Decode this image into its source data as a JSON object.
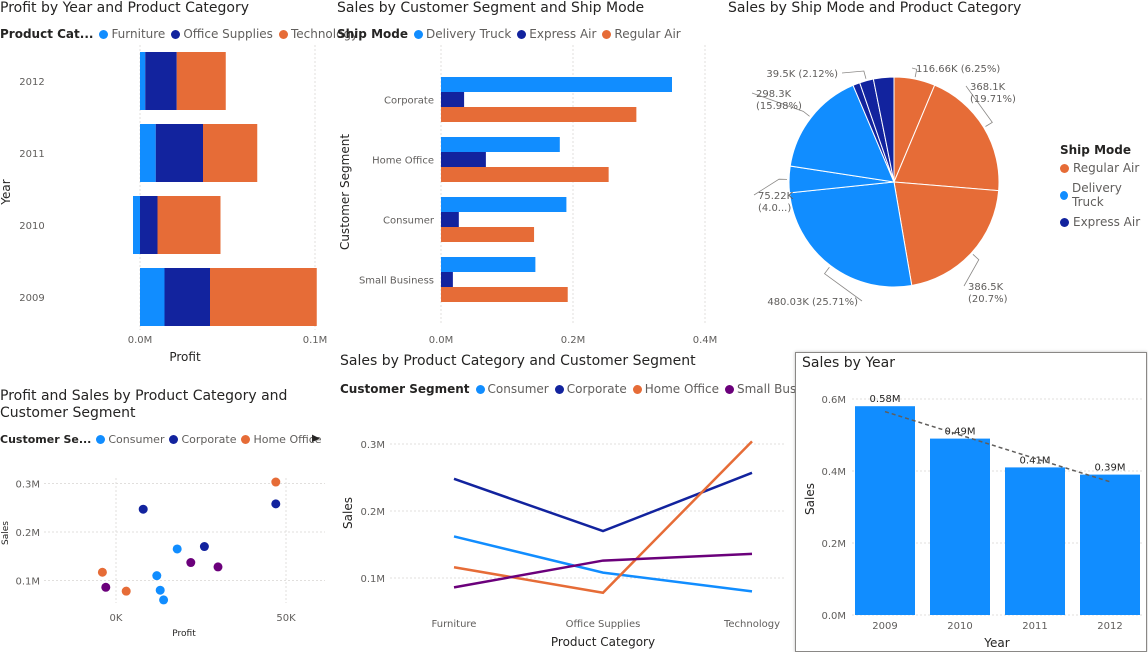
{
  "colors": {
    "blue": "#118DFF",
    "navy": "#12239E",
    "orange": "#E66C37",
    "purple": "#6B007B",
    "grid": "#e1dfdd"
  },
  "v1": {
    "title": "Profit by Year and Product Category",
    "legend_title": "Product Cat...",
    "legend": [
      "Furniture",
      "Office Supplies",
      "Technology"
    ],
    "xlabel": "Profit",
    "ylabel": "Year",
    "x_ticks": [
      "0.0M",
      "0.1M"
    ]
  },
  "v2": {
    "title": "Sales by Customer Segment and Ship Mode",
    "legend_title": "Ship Mode",
    "legend": [
      "Delivery Truck",
      "Express Air",
      "Regular Air"
    ],
    "ylabel": "Customer Segment",
    "x_ticks": [
      "0.0M",
      "0.2M",
      "0.4M"
    ]
  },
  "v3": {
    "title": "Sales by Ship Mode and Product Category",
    "legend_title": "Ship Mode",
    "legend": [
      "Regular Air",
      "Delivery Truck",
      "Express Air"
    ],
    "labels": [
      "116.66K (6.25%)",
      "368.1K (19.71%)",
      "386.5K (20.7%)",
      "480.03K (25.71%)",
      "75.22K (4.0...)",
      "298.3K (15.98%)",
      "39.5K (2.12%)"
    ]
  },
  "v4": {
    "title_line1": "Profit and Sales by Product Category and",
    "title_line2": "Customer Segment",
    "legend_title": "Customer Se...",
    "legend": [
      "Consumer",
      "Corporate",
      "Home Office"
    ],
    "more_icon": "▶",
    "xlabel": "Profit",
    "ylabel": "Sales",
    "x_ticks": [
      "0K",
      "50K"
    ],
    "y_ticks": [
      "0.1M",
      "0.2M",
      "0.3M"
    ]
  },
  "v5": {
    "title": "Sales by Product Category and Customer Segment",
    "legend_title": "Customer Segment",
    "legend": [
      "Consumer",
      "Corporate",
      "Home Office",
      "Small Business"
    ],
    "xlabel": "Product Category",
    "ylabel": "Sales",
    "y_ticks": [
      "0.1M",
      "0.2M",
      "0.3M"
    ]
  },
  "v6": {
    "title": "Sales by Year",
    "xlabel": "Year",
    "ylabel": "Sales",
    "y_ticks": [
      "0.0M",
      "0.2M",
      "0.4M",
      "0.6M"
    ],
    "data_labels": [
      "0.58M",
      "0.49M",
      "0.41M",
      "0.39M"
    ]
  },
  "chart_data": [
    {
      "type": "bar",
      "orientation": "horizontal",
      "stacked": true,
      "title": "Profit by Year and Product Category",
      "categories": [
        "2012",
        "2011",
        "2010",
        "2009"
      ],
      "series": [
        {
          "name": "Furniture",
          "values": [
            0.003,
            0.009,
            -0.004,
            0.014
          ]
        },
        {
          "name": "Office Supplies",
          "values": [
            0.018,
            0.027,
            0.01,
            0.026
          ]
        },
        {
          "name": "Technology",
          "values": [
            0.028,
            0.031,
            0.036,
            0.061
          ]
        }
      ],
      "xlabel": "Profit",
      "ylabel": "Year",
      "xlim": [
        -0.002,
        0.12
      ],
      "x_ticks": [
        0.0,
        0.1
      ]
    },
    {
      "type": "bar",
      "orientation": "horizontal",
      "title": "Sales by Customer Segment and Ship Mode",
      "categories": [
        "Corporate",
        "Home Office",
        "Consumer",
        "Small Business"
      ],
      "series": [
        {
          "name": "Delivery Truck",
          "values": [
            0.35,
            0.18,
            0.19,
            0.143
          ]
        },
        {
          "name": "Express Air",
          "values": [
            0.035,
            0.068,
            0.027,
            0.018
          ]
        },
        {
          "name": "Regular Air",
          "values": [
            0.296,
            0.254,
            0.141,
            0.192
          ]
        }
      ],
      "ylabel": "Customer Segment",
      "xlim": [
        0,
        0.4
      ]
    },
    {
      "type": "pie",
      "title": "Sales by Ship Mode and Product Category",
      "slices": [
        {
          "label": "116.66K (6.25%)",
          "value": 116.66,
          "series": "Regular Air"
        },
        {
          "label": "368.1K (19.71%)",
          "value": 368.1,
          "series": "Regular Air"
        },
        {
          "label": "386.5K (20.7%)",
          "value": 386.5,
          "series": "Regular Air"
        },
        {
          "label": "480.03K (25.71%)",
          "value": 480.03,
          "series": "Delivery Truck"
        },
        {
          "label": "75.22K (4.0...)",
          "value": 75.22,
          "series": "Delivery Truck"
        },
        {
          "label": "298.3K (15.98%)",
          "value": 298.3,
          "series": "Delivery Truck"
        },
        {
          "label": "",
          "value": 20.0,
          "series": "Express Air"
        },
        {
          "label": "39.5K (2.12%)",
          "value": 39.5,
          "series": "Express Air"
        },
        {
          "label": "",
          "value": 58.0,
          "series": "Express Air"
        }
      ]
    },
    {
      "type": "scatter",
      "title": "Profit and Sales by Product Category and Customer Segment",
      "series": [
        {
          "name": "Consumer",
          "points": [
            [
              14,
              60
            ],
            [
              18,
              165
            ],
            [
              12,
              110
            ],
            [
              13,
              80
            ]
          ]
        },
        {
          "name": "Corporate",
          "points": [
            [
              8,
              247
            ],
            [
              26,
              170
            ],
            [
              47,
              258
            ]
          ]
        },
        {
          "name": "Home Office",
          "points": [
            [
              -4,
              117
            ],
            [
              3,
              78
            ],
            [
              47,
              303
            ]
          ]
        },
        {
          "name": "",
          "points": [
            [
              -3,
              86
            ],
            [
              22,
              137
            ],
            [
              30,
              128
            ]
          ]
        }
      ],
      "xlabel": "Profit",
      "ylabel": "Sales",
      "xlim": [
        -10,
        55
      ],
      "ylim": [
        0,
        340
      ]
    },
    {
      "type": "line",
      "title": "Sales by Product Category and Customer Segment",
      "categories": [
        "Furniture",
        "Office Supplies",
        "Technology"
      ],
      "series": [
        {
          "name": "Consumer",
          "values": [
            0.162,
            0.108,
            0.08
          ]
        },
        {
          "name": "Corporate",
          "values": [
            0.248,
            0.17,
            0.257
          ]
        },
        {
          "name": "Home Office",
          "values": [
            0.116,
            0.078,
            0.304
          ]
        },
        {
          "name": "Small Business",
          "values": [
            0.086,
            0.126,
            0.136
          ]
        }
      ],
      "xlabel": "Product Category",
      "ylabel": "Sales",
      "ylim": [
        0.05,
        0.32
      ]
    },
    {
      "type": "bar",
      "title": "Sales by Year",
      "categories": [
        "2009",
        "2010",
        "2011",
        "2012"
      ],
      "values": [
        0.58,
        0.49,
        0.41,
        0.39
      ],
      "data_labels": [
        "0.58M",
        "0.49M",
        "0.41M",
        "0.39M"
      ],
      "trend_line": true,
      "xlabel": "Year",
      "ylabel": "Sales",
      "ylim": [
        0,
        0.65
      ]
    }
  ]
}
